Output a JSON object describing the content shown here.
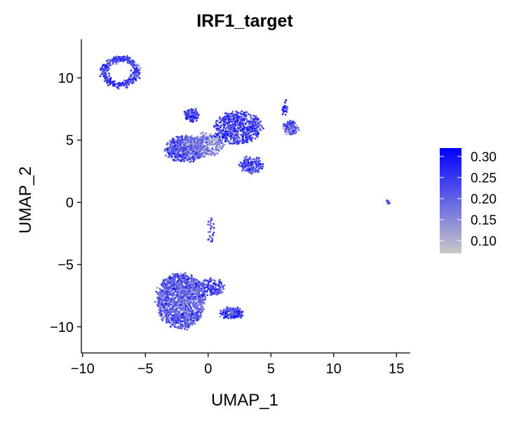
{
  "chart_data": {
    "type": "scatter",
    "title": "IRF1_target",
    "xlabel": "UMAP_1",
    "ylabel": "UMAP_2",
    "xlim": [
      -10.1,
      16.1
    ],
    "ylim": [
      -12.1,
      13.1
    ],
    "x_ticks": [
      -10,
      -5,
      0,
      5,
      10,
      15
    ],
    "x_tick_labels": [
      "−10",
      "−5",
      "0",
      "5",
      "10",
      "15"
    ],
    "y_ticks": [
      -10,
      -5,
      0,
      5,
      10
    ],
    "y_tick_labels": [
      "−10",
      "−5",
      "0",
      "5",
      "10"
    ],
    "grid": false,
    "color_scale": {
      "name": "IRF1_target",
      "low_color": "#c8c8c8",
      "high_color": "#0000ff",
      "range": [
        0.07,
        0.32
      ],
      "ticks": [
        0.1,
        0.15,
        0.2,
        0.25,
        0.3
      ],
      "tick_labels": [
        "0.10",
        "0.15",
        "0.20",
        "0.25",
        "0.30"
      ],
      "placement": "right"
    },
    "clusters": [
      {
        "label": "top-left ring",
        "shape": "ring",
        "center": [
          -7.0,
          10.5
        ],
        "radius": [
          1.3,
          1.05
        ],
        "n": 380,
        "mean_score": 0.24
      },
      {
        "label": "upper-middle left lobe",
        "shape": "blob",
        "center": [
          -1.8,
          4.3
        ],
        "radius": [
          1.6,
          1.0
        ],
        "n": 650,
        "mean_score": 0.22
      },
      {
        "label": "upper-middle gray core",
        "shape": "blob",
        "center": [
          -0.3,
          4.6
        ],
        "radius": [
          1.5,
          0.9
        ],
        "n": 320,
        "mean_score": 0.16
      },
      {
        "label": "upper-middle spike",
        "shape": "blob",
        "center": [
          -1.3,
          7.0
        ],
        "radius": [
          0.55,
          0.5
        ],
        "n": 120,
        "mean_score": 0.25
      },
      {
        "label": "upper-middle right lobe",
        "shape": "blob",
        "center": [
          2.4,
          6.0
        ],
        "radius": [
          1.9,
          1.3
        ],
        "n": 620,
        "mean_score": 0.24
      },
      {
        "label": "upper-middle lower lobe",
        "shape": "blob",
        "center": [
          3.4,
          3.0
        ],
        "radius": [
          0.9,
          0.6
        ],
        "n": 180,
        "mean_score": 0.23
      },
      {
        "label": "upper-right arm",
        "shape": "blob",
        "center": [
          6.6,
          6.0
        ],
        "radius": [
          0.6,
          0.55
        ],
        "n": 110,
        "mean_score": 0.22
      },
      {
        "label": "upper-right stalk",
        "shape": "blob",
        "center": [
          6.1,
          7.6
        ],
        "radius": [
          0.15,
          0.6
        ],
        "n": 30,
        "mean_score": 0.27
      },
      {
        "label": "isolated point",
        "shape": "blob",
        "center": [
          14.3,
          0.0
        ],
        "radius": [
          0.1,
          0.12
        ],
        "n": 8,
        "mean_score": 0.27
      },
      {
        "label": "middle strand",
        "shape": "blob",
        "center": [
          0.2,
          -2.2
        ],
        "radius": [
          0.25,
          1.0
        ],
        "n": 30,
        "mean_score": 0.22
      },
      {
        "label": "lower main blob",
        "shape": "blob",
        "center": [
          -2.2,
          -7.9
        ],
        "radius": [
          1.9,
          2.2
        ],
        "n": 1400,
        "mean_score": 0.21
      },
      {
        "label": "lower arm",
        "shape": "blob",
        "center": [
          0.3,
          -6.8
        ],
        "radius": [
          1.0,
          0.7
        ],
        "n": 160,
        "mean_score": 0.23
      },
      {
        "label": "lower tail",
        "shape": "blob",
        "center": [
          1.9,
          -8.9
        ],
        "radius": [
          0.9,
          0.4
        ],
        "n": 220,
        "mean_score": 0.23
      }
    ]
  }
}
